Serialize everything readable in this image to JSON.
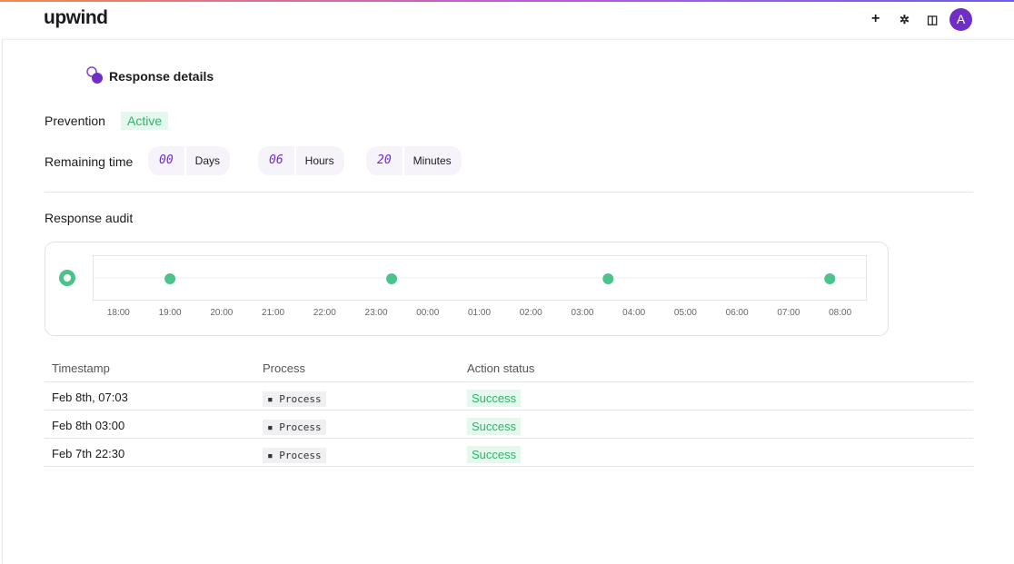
{
  "header": {
    "logo": "upwind",
    "avatar": "A"
  },
  "section_title": "Response details",
  "prevention": {
    "label": "Prevention",
    "status": "Active"
  },
  "remaining_time": {
    "label": "Remaining time",
    "units": [
      {
        "value": "00",
        "unit": "Days"
      },
      {
        "value": "06",
        "unit": "Hours"
      },
      {
        "value": "20",
        "unit": "Minutes"
      }
    ]
  },
  "response_audit": {
    "title": "Response audit",
    "timeline": {
      "xlim": [
        -0.5,
        14.5
      ],
      "xticks": [
        {
          "value": 0,
          "label": "18:00"
        },
        {
          "value": 1,
          "label": "19:00"
        },
        {
          "value": 2,
          "label": "20:00"
        },
        {
          "value": 3,
          "label": "21:00"
        },
        {
          "value": 4,
          "label": "22:00"
        },
        {
          "value": 5,
          "label": "23:00"
        },
        {
          "value": 6,
          "label": "00:00"
        },
        {
          "value": 7,
          "label": "01:00"
        },
        {
          "value": 8,
          "label": "02:00"
        },
        {
          "value": 9,
          "label": "03:00"
        },
        {
          "value": 10,
          "label": "04:00"
        },
        {
          "value": 11,
          "label": "05:00"
        },
        {
          "value": 12,
          "label": "06:00"
        },
        {
          "value": 13,
          "label": "07:00"
        },
        {
          "value": 14,
          "label": "08:00"
        }
      ],
      "events_x": [
        1,
        5.3,
        9.5,
        13.8
      ],
      "color": "#4cc38a"
    }
  },
  "table": {
    "columns": [
      "Timestamp",
      "Process",
      "Action status"
    ],
    "rows": [
      [
        "Feb 8th, 07:03",
        "Process",
        "Success"
      ],
      [
        "Feb 8th 03:00",
        "Process",
        "Success"
      ],
      [
        "Feb 7th 22:30",
        "Process",
        "Success"
      ]
    ]
  }
}
